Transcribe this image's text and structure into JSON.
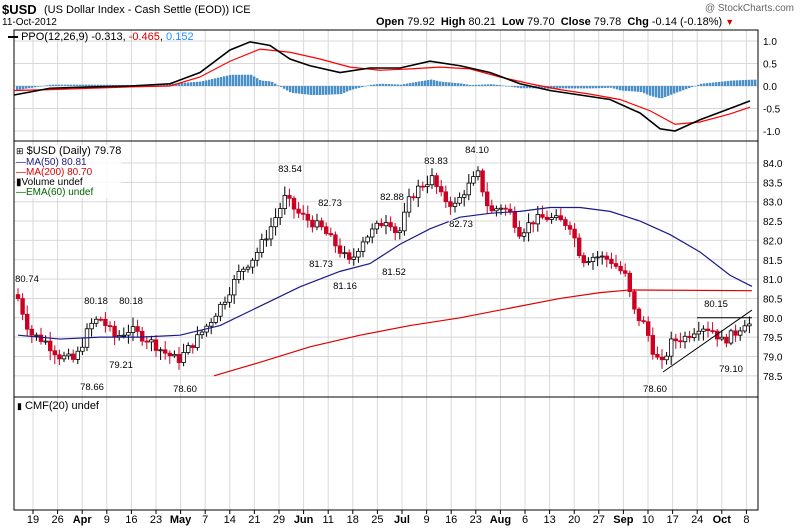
{
  "header": {
    "symbol": "$USD",
    "description": "(US Dollar Index - Cash Settle (EOD)) ICE",
    "date": "11-Oct-2012",
    "watermark": "@ StockCharts.com",
    "open_label": "Open",
    "open": "79.92",
    "high_label": "High",
    "high": "80.21",
    "low_label": "Low",
    "low": "79.70",
    "close_label": "Close",
    "close": "79.78",
    "chg_label": "Chg",
    "chg": "-0.14 (-0.18%)",
    "chg_icon": "down-triangle-icon"
  },
  "ppo_panel": {
    "label": "PPO(12,26,9)",
    "values": [
      "-0.313",
      "-0.465",
      "0.152"
    ],
    "value_colors": [
      "#000000",
      "#ff0000",
      "#1e90ff"
    ],
    "yticks": [
      "1.0",
      "0.5",
      "0.0",
      "-0.5",
      "-1.0"
    ]
  },
  "price_panel": {
    "legend": [
      {
        "text": "$USD (Daily) 79.78",
        "color": "#000000",
        "icon": "candlestick-icon"
      },
      {
        "text": "MA(50) 80.81",
        "color": "#000080",
        "icon": "line-icon"
      },
      {
        "text": "MA(200) 80.70",
        "color": "#ff0000",
        "icon": "line-icon"
      },
      {
        "text": "Volume undef",
        "color": "#000000",
        "icon": "bar-icon"
      },
      {
        "text": "EMA(60) undef",
        "color": "#006400",
        "icon": "line-icon"
      }
    ],
    "yticks": [
      "84.0",
      "83.5",
      "83.0",
      "82.5",
      "82.0",
      "81.5",
      "81.0",
      "80.5",
      "80.0",
      "79.5",
      "79.0",
      "78.5"
    ],
    "annotations": [
      "80.74",
      "80.18",
      "80.18",
      "78.66",
      "79.21",
      "78.60",
      "83.54",
      "82.73",
      "81.73",
      "81.16",
      "82.88",
      "81.52",
      "83.83",
      "84.10",
      "82.73",
      "80.15",
      "78.60",
      "79.10"
    ]
  },
  "cmf_panel": {
    "label": "CMF(20) undef"
  },
  "xaxis": {
    "ticks": [
      "19",
      "26",
      "Apr",
      "9",
      "16",
      "23",
      "May",
      "7",
      "14",
      "21",
      "29",
      "Jun",
      "11",
      "18",
      "25",
      "Jul",
      "9",
      "16",
      "23",
      "Aug",
      "6",
      "13",
      "20",
      "27",
      "Sep",
      "10",
      "17",
      "24",
      "Oct",
      "8"
    ]
  },
  "colors": {
    "up": "#000000",
    "down": "#cc0022",
    "ma50": "#1a1a8c",
    "ma200": "#e00000",
    "ppo": "#000000",
    "signal": "#ff0000",
    "histogram": "#4a90c8",
    "grid": "#d8d8d8"
  },
  "chart_data": {
    "type": "candlestick",
    "title": "$USD (US Dollar Index - Cash Settle (EOD)) ICE",
    "price_range": [
      78.5,
      84.0
    ],
    "ppo_range": [
      -1.0,
      1.0
    ],
    "series": [
      {
        "name": "$USD (Daily)",
        "type": "candlestick",
        "x": [
          "Mar 16",
          "Mar 19",
          "Mar 26",
          "Apr 2",
          "Apr 9",
          "Apr 16",
          "Apr 23",
          "May 1",
          "May 7",
          "May 14",
          "May 21",
          "May 29",
          "Jun 4",
          "Jun 11",
          "Jun 18",
          "Jun 25",
          "Jul 2",
          "Jul 9",
          "Jul 16",
          "Jul 23",
          "Aug 1",
          "Aug 6",
          "Aug 13",
          "Aug 20",
          "Aug 27",
          "Sep 4",
          "Sep 10",
          "Sep 17",
          "Sep 24",
          "Oct 1",
          "Oct 8",
          "Oct 11"
        ],
        "close": [
          80.5,
          79.6,
          79.2,
          79.8,
          79.7,
          79.4,
          79.4,
          78.9,
          79.6,
          80.7,
          81.7,
          83.1,
          82.3,
          82.3,
          81.8,
          82.6,
          83.2,
          83.4,
          83.1,
          83.2,
          82.8,
          82.5,
          82.4,
          82.3,
          81.4,
          81.4,
          79.4,
          78.9,
          79.6,
          79.7,
          79.9,
          79.78
        ]
      },
      {
        "name": "MA(50)",
        "x": [
          "Mar 16",
          "Apr 16",
          "May 14",
          "Jun 4",
          "Jul 2",
          "Jul 23",
          "Aug 13",
          "Sep 4",
          "Sep 24",
          "Oct 11"
        ],
        "y": [
          79.5,
          79.5,
          79.6,
          80.4,
          81.3,
          82.3,
          82.8,
          82.7,
          82.1,
          80.81
        ]
      },
      {
        "name": "MA(200)",
        "x": [
          "May 7",
          "Jun 4",
          "Jul 2",
          "Aug 1",
          "Sep 4",
          "Sep 17",
          "Oct 11"
        ],
        "y": [
          78.5,
          79.0,
          79.5,
          80.0,
          80.5,
          80.7,
          80.7
        ]
      },
      {
        "name": "PPO",
        "x": [
          "Mar 16",
          "Apr 2",
          "Apr 23",
          "May 7",
          "May 29",
          "Jun 11",
          "Jul 2",
          "Jul 23",
          "Aug 13",
          "Sep 4",
          "Sep 24",
          "Oct 11"
        ],
        "y": [
          -0.2,
          -0.05,
          0.02,
          0.0,
          1.0,
          0.5,
          0.45,
          0.5,
          -0.2,
          -0.5,
          -1.0,
          -0.313
        ]
      },
      {
        "name": "Signal",
        "x": [
          "Mar 16",
          "Apr 2",
          "Apr 23",
          "May 7",
          "May 29",
          "Jun 11",
          "Jul 2",
          "Jul 23",
          "Aug 13",
          "Sep 4",
          "Sep 24",
          "Oct 11"
        ],
        "y": [
          -0.1,
          -0.08,
          -0.02,
          0.0,
          0.7,
          0.6,
          0.35,
          0.4,
          0.1,
          -0.35,
          -0.85,
          -0.465
        ]
      },
      {
        "name": "Histogram",
        "x": [
          "Oct 11"
        ],
        "y": [
          0.152
        ]
      }
    ]
  }
}
